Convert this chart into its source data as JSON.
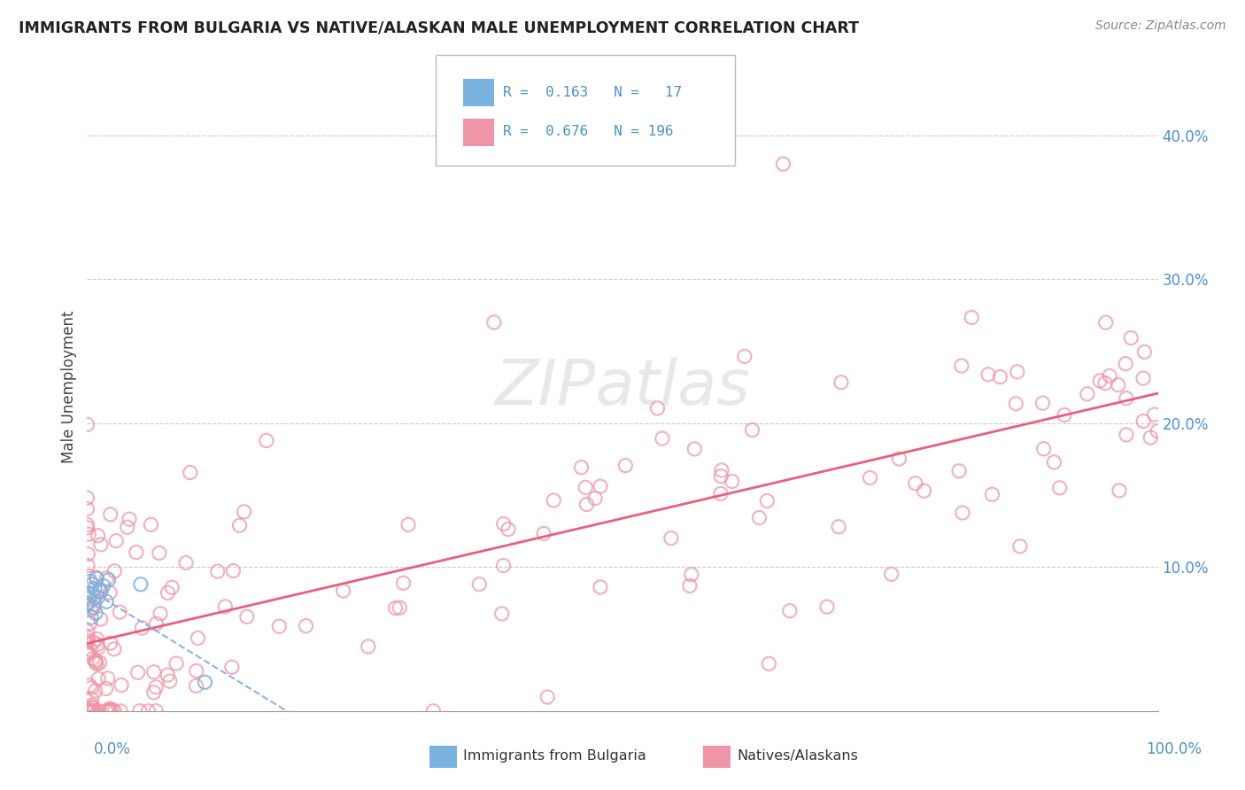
{
  "title": "IMMIGRANTS FROM BULGARIA VS NATIVE/ALASKAN MALE UNEMPLOYMENT CORRELATION CHART",
  "source": "Source: ZipAtlas.com",
  "ylabel": "Male Unemployment",
  "color_bulgaria": "#7ab3e0",
  "color_native": "#f095a8",
  "color_trendline_bulgaria": "#8ab4e8",
  "color_trendline_native": "#e8607a",
  "color_axis_labels": "#4a90cc",
  "color_grid": "#cccccc",
  "xlim": [
    0.0,
    1.0
  ],
  "ylim": [
    0.0,
    0.45
  ],
  "watermark": "ZIPatlas",
  "R_bulgaria": 0.163,
  "N_bulgaria": 17,
  "R_native": 0.676,
  "N_native": 196
}
